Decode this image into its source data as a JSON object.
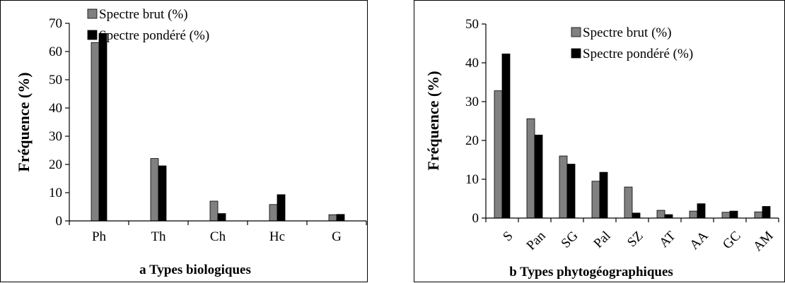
{
  "chart_data": [
    {
      "type": "bar",
      "title": "",
      "xlabel": "a Types biologiques",
      "ylabel": "Fréquence (%)",
      "ylim": [
        0,
        70
      ],
      "yticks": [
        0,
        10,
        20,
        30,
        40,
        50,
        60,
        70
      ],
      "categories": [
        "Ph",
        "Th",
        "Ch",
        "Hc",
        "G"
      ],
      "legend": "top-center",
      "grid": false,
      "series": [
        {
          "name": "Spectre brut (%)",
          "color": "#808080",
          "values": [
            63.2,
            22.1,
            7.0,
            5.8,
            2.2
          ]
        },
        {
          "name": "Spectre pondéré (%)",
          "color": "#000000",
          "values": [
            66.4,
            19.5,
            2.6,
            9.3,
            2.3
          ]
        }
      ]
    },
    {
      "type": "bar",
      "title": "",
      "xlabel": "b Types phytogéographiques",
      "ylabel": "Fréquence (%)",
      "ylim": [
        0,
        50
      ],
      "yticks": [
        0,
        10,
        20,
        30,
        40,
        50
      ],
      "categories": [
        "S",
        "Pan",
        "SG",
        "Pal",
        "SZ",
        "AT",
        "AA",
        "GC",
        "AM"
      ],
      "legend": "top-right",
      "grid": false,
      "series": [
        {
          "name": "Spectre brut (%)",
          "color": "#808080",
          "values": [
            32.8,
            25.6,
            16.0,
            9.5,
            8.0,
            2.0,
            1.8,
            1.5,
            1.6
          ]
        },
        {
          "name": "Spectre pondéré (%)",
          "color": "#000000",
          "values": [
            42.3,
            21.4,
            13.9,
            11.8,
            1.3,
            0.9,
            3.7,
            1.8,
            3.0
          ]
        }
      ]
    }
  ]
}
